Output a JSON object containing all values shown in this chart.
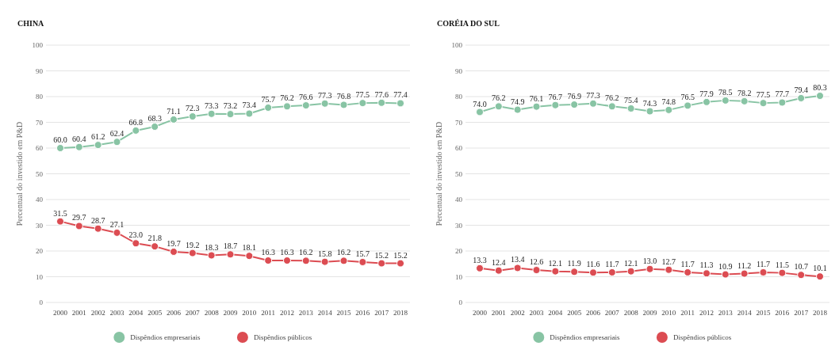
{
  "chart_data": [
    {
      "type": "line",
      "title": "CHINA",
      "ylabel": "Percentual do investido em P&D",
      "categories": [
        "2000",
        "2001",
        "2002",
        "2003",
        "2004",
        "2005",
        "2006",
        "2007",
        "2008",
        "2009",
        "2010",
        "2011",
        "2012",
        "2013",
        "2014",
        "2015",
        "2016",
        "2017",
        "2018"
      ],
      "series": [
        {
          "name": "Dispêndios empresariais",
          "color": "#88c4a4",
          "values": [
            60.0,
            60.4,
            61.2,
            62.4,
            66.8,
            68.3,
            71.1,
            72.3,
            73.3,
            73.2,
            73.4,
            75.7,
            76.2,
            76.6,
            77.3,
            76.8,
            77.5,
            77.6,
            77.4
          ],
          "value_labels": [
            "60.0",
            "60.4",
            "61.2",
            "62.4",
            "66.8",
            "68.3",
            "71.1",
            "72.3",
            "73.3",
            "73.2",
            "73.4",
            "75.7",
            "76.2",
            "76.6",
            "77.3",
            "76.8",
            "77.5",
            "77.6",
            "77.4"
          ]
        },
        {
          "name": "Dispêndios públicos",
          "color": "#dc4c52",
          "values": [
            31.5,
            29.7,
            28.7,
            27.1,
            23.0,
            21.8,
            19.7,
            19.2,
            18.3,
            18.7,
            18.1,
            16.3,
            16.3,
            16.2,
            15.8,
            16.2,
            15.7,
            15.2,
            15.2
          ],
          "value_labels": [
            "31.5",
            "29.7",
            "28.7",
            "27.1",
            "23.0",
            "21.8",
            "19.7",
            "19.2",
            "18.3",
            "18.7",
            "18.1",
            "16.3",
            "16.3",
            "16.2",
            "15.8",
            "16.2",
            "15.7",
            "15.2",
            "15.2"
          ]
        }
      ],
      "ylim": [
        0,
        100
      ],
      "yticks": [
        0,
        10,
        20,
        30,
        40,
        50,
        60,
        70,
        80,
        90,
        100
      ],
      "grid": "y",
      "legend": "bottom",
      "marker": "circle"
    },
    {
      "type": "line",
      "title": "CORÉIA DO SUL",
      "ylabel": "Percentual do investido em P&D",
      "categories": [
        "2000",
        "2001",
        "2002",
        "2003",
        "2004",
        "2005",
        "2006",
        "2007",
        "2008",
        "2009",
        "2010",
        "2011",
        "2012",
        "2013",
        "2014",
        "2015",
        "2016",
        "2017",
        "2018"
      ],
      "series": [
        {
          "name": "Dispêndios empresariais",
          "color": "#88c4a4",
          "values": [
            74.0,
            76.2,
            74.9,
            76.1,
            76.7,
            76.9,
            77.3,
            76.2,
            75.4,
            74.3,
            74.8,
            76.5,
            77.9,
            78.5,
            78.2,
            77.5,
            77.7,
            79.4,
            80.3
          ],
          "value_labels": [
            "74.0",
            "76.2",
            "74.9",
            "76.1",
            "76.7",
            "76.9",
            "77.3",
            "76.2",
            "75.4",
            "74.3",
            "74.8",
            "76.5",
            "77.9",
            "78.5",
            "78.2",
            "77.5",
            "77.7",
            "79.4",
            "80.3"
          ]
        },
        {
          "name": "Dispêndios públicos",
          "color": "#dc4c52",
          "values": [
            13.3,
            12.4,
            13.4,
            12.6,
            12.1,
            11.9,
            11.6,
            11.7,
            12.1,
            13.0,
            12.7,
            11.7,
            11.3,
            10.9,
            11.2,
            11.7,
            11.5,
            10.7,
            10.1
          ],
          "value_labels": [
            "13.3",
            "12.4",
            "13.4",
            "12.6",
            "12.1",
            "11.9",
            "11.6",
            "11.7",
            "12.1",
            "13.0",
            "12.7",
            "11.7",
            "11.3",
            "10.9",
            "11.2",
            "11.7",
            "11.5",
            "10.7",
            "10.1"
          ]
        }
      ],
      "ylim": [
        0,
        100
      ],
      "yticks": [
        0,
        10,
        20,
        30,
        40,
        50,
        60,
        70,
        80,
        90,
        100
      ],
      "grid": "y",
      "legend": "bottom",
      "marker": "circle"
    }
  ]
}
